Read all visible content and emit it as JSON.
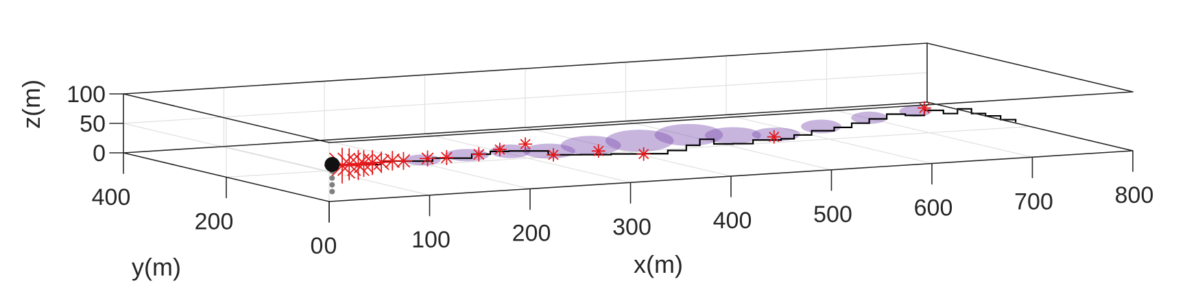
{
  "chart_data": {
    "type": "scatter3d",
    "title": "",
    "xlabel": "x(m)",
    "ylabel": "y(m)",
    "zlabel": "z(m)",
    "xlim": [
      0,
      800
    ],
    "ylim": [
      0,
      400
    ],
    "zlim": [
      0,
      100
    ],
    "grid": true,
    "colors": {
      "axes": "#262626",
      "grid": "#e0e0e0",
      "path": "#000000",
      "markers": "#e41a1c",
      "plume": "#7b4fb0",
      "source": "#111111",
      "source_stem": "#808080"
    },
    "ticks": {
      "x": [
        {
          "value": 0,
          "label": "0"
        },
        {
          "value": 100,
          "label": "100"
        },
        {
          "value": 200,
          "label": "200"
        },
        {
          "value": 300,
          "label": "300"
        },
        {
          "value": 400,
          "label": "400"
        },
        {
          "value": 500,
          "label": "500"
        },
        {
          "value": 600,
          "label": "600"
        },
        {
          "value": 700,
          "label": "700"
        },
        {
          "value": 800,
          "label": "800"
        }
      ],
      "y": [
        {
          "value": 0,
          "label": "0"
        },
        {
          "value": 200,
          "label": "200"
        },
        {
          "value": 400,
          "label": "400"
        }
      ],
      "z": [
        {
          "value": 0,
          "label": "0"
        },
        {
          "value": 50,
          "label": "50"
        },
        {
          "value": 100,
          "label": "100"
        }
      ]
    },
    "source_point": {
      "x": 90,
      "y": 170,
      "z": 18
    },
    "detections": [
      {
        "x": 100,
        "y": 170,
        "z": 15,
        "size": 1.0
      },
      {
        "x": 108,
        "y": 172,
        "z": 16,
        "size": 0.9
      },
      {
        "x": 115,
        "y": 168,
        "z": 15,
        "size": 0.85
      },
      {
        "x": 122,
        "y": 171,
        "z": 16,
        "size": 0.75
      },
      {
        "x": 130,
        "y": 170,
        "z": 17,
        "size": 0.7
      },
      {
        "x": 140,
        "y": 172,
        "z": 16,
        "size": 0.6
      },
      {
        "x": 150,
        "y": 170,
        "z": 18,
        "size": 0.55
      },
      {
        "x": 160,
        "y": 168,
        "z": 17,
        "size": 0.5
      },
      {
        "x": 185,
        "y": 170,
        "z": 18,
        "size": 0.45
      },
      {
        "x": 205,
        "y": 172,
        "z": 17,
        "size": 0.42
      },
      {
        "x": 235,
        "y": 168,
        "z": 20,
        "size": 0.4
      },
      {
        "x": 260,
        "y": 176,
        "z": 24,
        "size": 0.38
      },
      {
        "x": 290,
        "y": 185,
        "z": 28,
        "size": 0.38
      },
      {
        "x": 300,
        "y": 150,
        "z": 16,
        "size": 0.38
      },
      {
        "x": 350,
        "y": 160,
        "z": 15,
        "size": 0.38
      },
      {
        "x": 395,
        "y": 160,
        "z": 5,
        "size": 0.38
      },
      {
        "x": 535,
        "y": 180,
        "z": 15,
        "size": 0.38
      },
      {
        "x": 700,
        "y": 210,
        "z": 40,
        "size": 0.38
      }
    ],
    "path": [
      [
        90,
        170,
        18
      ],
      [
        140,
        172,
        18
      ],
      [
        190,
        170,
        18
      ],
      [
        230,
        172,
        20
      ],
      [
        250,
        175,
        22
      ],
      [
        270,
        178,
        20
      ],
      [
        300,
        160,
        14
      ],
      [
        330,
        155,
        12
      ],
      [
        360,
        155,
        10
      ],
      [
        395,
        158,
        6
      ],
      [
        420,
        162,
        8
      ],
      [
        440,
        165,
        14
      ],
      [
        455,
        168,
        22
      ],
      [
        470,
        170,
        12
      ],
      [
        490,
        172,
        10
      ],
      [
        510,
        172,
        14
      ],
      [
        540,
        176,
        12
      ],
      [
        555,
        180,
        16
      ],
      [
        575,
        185,
        20
      ],
      [
        600,
        190,
        22
      ],
      [
        620,
        195,
        26
      ],
      [
        640,
        200,
        30
      ],
      [
        660,
        205,
        35
      ],
      [
        680,
        208,
        30
      ],
      [
        700,
        210,
        36
      ],
      [
        720,
        212,
        28
      ],
      [
        735,
        214,
        34
      ],
      [
        750,
        216,
        24
      ],
      [
        765,
        218,
        18
      ],
      [
        780,
        218,
        10
      ],
      [
        795,
        218,
        4
      ]
    ],
    "plume": [
      {
        "x": 180,
        "y": 170,
        "z": 16,
        "rx": 18,
        "ry": 8
      },
      {
        "x": 225,
        "y": 172,
        "z": 19,
        "rx": 22,
        "ry": 9
      },
      {
        "x": 270,
        "y": 175,
        "z": 20,
        "rx": 20,
        "ry": 10
      },
      {
        "x": 305,
        "y": 168,
        "z": 18,
        "rx": 26,
        "ry": 11
      },
      {
        "x": 345,
        "y": 165,
        "z": 24,
        "rx": 30,
        "ry": 14
      },
      {
        "x": 395,
        "y": 168,
        "z": 26,
        "rx": 34,
        "ry": 16
      },
      {
        "x": 445,
        "y": 170,
        "z": 30,
        "rx": 34,
        "ry": 16
      },
      {
        "x": 490,
        "y": 172,
        "z": 24,
        "rx": 28,
        "ry": 12
      },
      {
        "x": 535,
        "y": 176,
        "z": 20,
        "rx": 24,
        "ry": 10
      },
      {
        "x": 585,
        "y": 186,
        "z": 26,
        "rx": 20,
        "ry": 10
      },
      {
        "x": 640,
        "y": 200,
        "z": 32,
        "rx": 18,
        "ry": 9
      },
      {
        "x": 690,
        "y": 208,
        "z": 36,
        "rx": 16,
        "ry": 8
      }
    ]
  }
}
